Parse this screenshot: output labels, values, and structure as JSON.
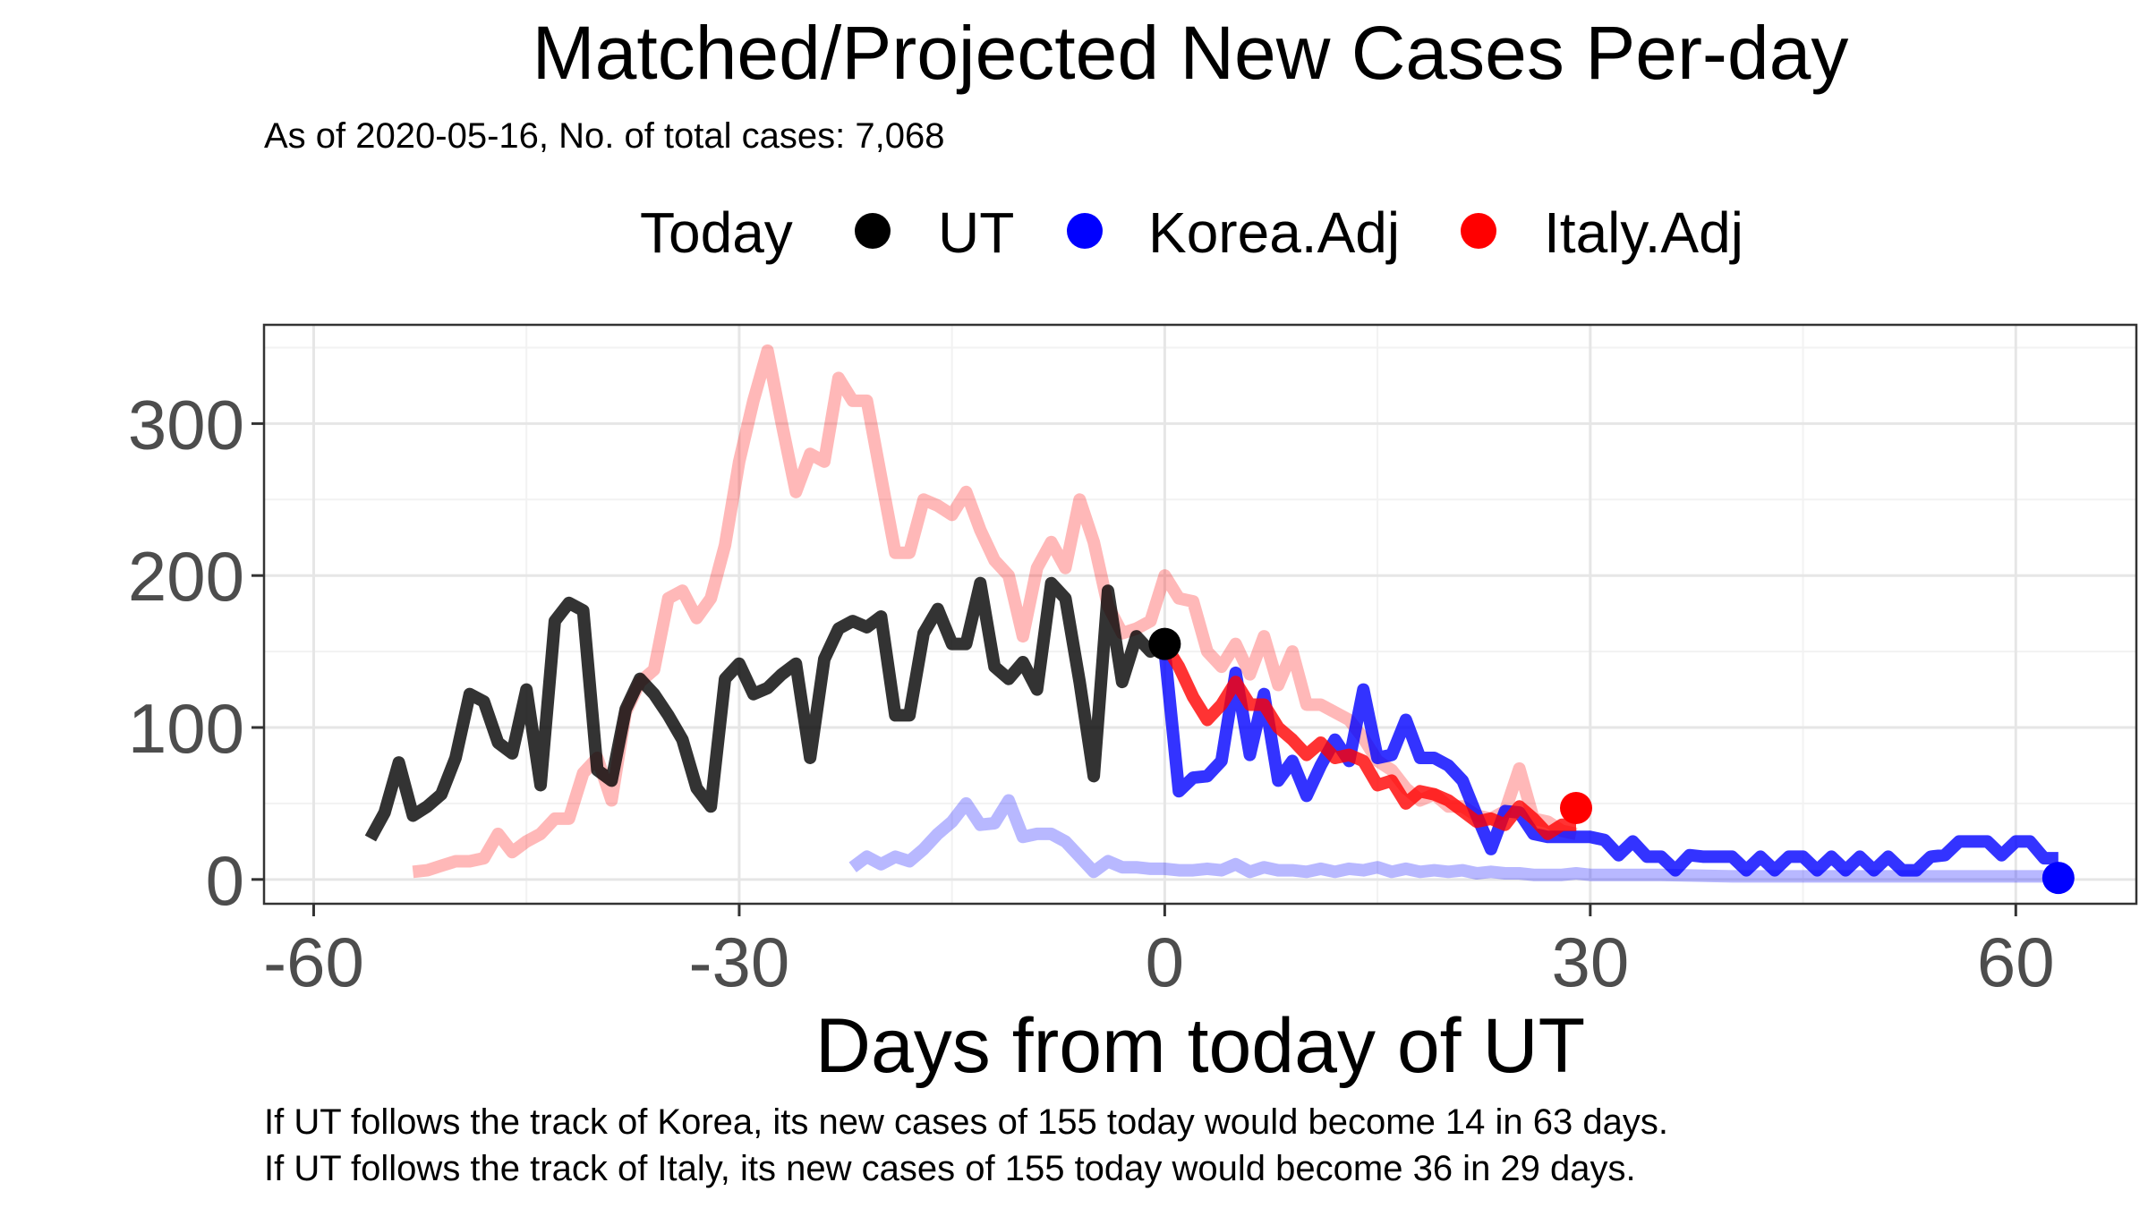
{
  "chart_data": {
    "type": "line",
    "title": "Matched/Projected New Cases Per-day",
    "subtitle": "As of 2020-05-16, No. of total cases: 7,068",
    "xlabel": "Days from today of UT",
    "ylabel": "",
    "xlim": [
      -63.5,
      68.5
    ],
    "ylim": [
      -16,
      365
    ],
    "x_ticks": [
      -60,
      -30,
      0,
      30,
      60
    ],
    "x_tick_labels": [
      "-60",
      "-30",
      "0",
      "30",
      "60"
    ],
    "y_ticks": [
      0,
      100,
      200,
      300
    ],
    "y_tick_labels": [
      "0",
      "100",
      "200",
      "300"
    ],
    "grid": true,
    "legend": {
      "position": "top",
      "title": "Today",
      "entries": [
        {
          "label": "UT",
          "color": "#000000"
        },
        {
          "label": "Korea.Adj",
          "color": "#0000ff"
        },
        {
          "label": "Italy.Adj",
          "color": "#ff0000"
        }
      ]
    },
    "series": [
      {
        "name": "Italy.Adj",
        "style": "history",
        "color": "#ff0000",
        "opacity": 0.28,
        "x": [
          -53,
          -52,
          -51,
          -50,
          -49,
          -48,
          -47,
          -46,
          -45,
          -44,
          -43,
          -42,
          -41,
          -40,
          -39,
          -38,
          -37,
          -36,
          -35,
          -34,
          -33,
          -32,
          -31,
          -30,
          -29,
          -28,
          -27,
          -26,
          -25,
          -24,
          -23,
          -22,
          -21,
          -20,
          -19,
          -18,
          -17,
          -16,
          -15,
          -14,
          -13,
          -12,
          -11,
          -10,
          -9,
          -8,
          -7,
          -6,
          -5,
          -4,
          -3,
          -2,
          -1,
          0,
          1,
          2,
          3,
          4,
          5,
          6,
          7,
          8,
          9,
          10,
          11,
          12,
          13,
          14,
          15,
          16,
          17,
          18,
          19,
          20,
          21,
          22,
          23,
          24,
          25,
          26,
          27,
          28,
          29
        ],
        "y": [
          5,
          6,
          9,
          12,
          12,
          14,
          30,
          18,
          25,
          30,
          40,
          40,
          70,
          80,
          52,
          110,
          130,
          138,
          185,
          190,
          172,
          185,
          220,
          275,
          315,
          348,
          300,
          255,
          280,
          275,
          330,
          315,
          315,
          265,
          215,
          215,
          250,
          246,
          240,
          255,
          230,
          210,
          200,
          160,
          205,
          222,
          205,
          250,
          222,
          180,
          162,
          165,
          170,
          200,
          185,
          183,
          150,
          140,
          155,
          135,
          160,
          128,
          150,
          115,
          115,
          110,
          105,
          93,
          78,
          72,
          60,
          52,
          56,
          48,
          48,
          42,
          40,
          45,
          73,
          40,
          38,
          32,
          30
        ]
      },
      {
        "name": "Korea.Adj",
        "style": "history",
        "color": "#0000ff",
        "opacity": 0.28,
        "x": [
          -22,
          -21,
          -20,
          -19,
          -18,
          -17,
          -16,
          -15,
          -14,
          -13,
          -12,
          -11,
          -10,
          -9,
          -8,
          -7,
          -6,
          -5,
          -4,
          -3,
          -2,
          -1,
          0,
          1,
          2,
          3,
          4,
          5,
          6,
          7,
          8,
          9,
          10,
          11,
          12,
          13,
          14,
          15,
          16,
          17,
          18,
          19,
          20,
          21,
          22,
          23,
          24,
          25,
          26,
          27,
          28,
          29,
          30,
          35,
          40,
          45,
          50,
          55,
          60,
          63
        ],
        "y": [
          8,
          15,
          10,
          15,
          12,
          20,
          30,
          38,
          50,
          36,
          37,
          52,
          28,
          30,
          30,
          25,
          15,
          5,
          12,
          8,
          8,
          7,
          7,
          6,
          6,
          7,
          6,
          10,
          5,
          8,
          6,
          6,
          5,
          7,
          5,
          7,
          6,
          8,
          5,
          7,
          5,
          6,
          5,
          6,
          4,
          5,
          4,
          4,
          3,
          3,
          3,
          4,
          3,
          3,
          2,
          2,
          2,
          2,
          2,
          2
        ]
      },
      {
        "name": "UT",
        "style": "observed",
        "color": "#000000",
        "opacity": 0.8,
        "x": [
          -56,
          -55,
          -54,
          -53,
          -52,
          -51,
          -50,
          -49,
          -48,
          -47,
          -46,
          -45,
          -44,
          -43,
          -42,
          -41,
          -40,
          -39,
          -38,
          -37,
          -36,
          -35,
          -34,
          -33,
          -32,
          -31,
          -30,
          -29,
          -28,
          -27,
          -26,
          -25,
          -24,
          -23,
          -22,
          -21,
          -20,
          -19,
          -18,
          -17,
          -16,
          -15,
          -14,
          -13,
          -12,
          -11,
          -10,
          -9,
          -8,
          -7,
          -6,
          -5,
          -4,
          -3,
          -2,
          -1,
          0
        ],
        "y": [
          27,
          44,
          77,
          42,
          48,
          56,
          80,
          122,
          117,
          90,
          83,
          125,
          62,
          170,
          182,
          177,
          72,
          65,
          112,
          132,
          122,
          108,
          92,
          60,
          48,
          132,
          142,
          122,
          126,
          135,
          142,
          80,
          145,
          165,
          170,
          166,
          173,
          108,
          108,
          162,
          178,
          155,
          155,
          195,
          140,
          132,
          143,
          125,
          195,
          185,
          130,
          68,
          190,
          130,
          160,
          150,
          155
        ]
      },
      {
        "name": "Korea.Adj",
        "style": "projected",
        "color": "#0000ff",
        "opacity": 0.8,
        "x": [
          0,
          1,
          2,
          3,
          4,
          5,
          6,
          7,
          8,
          9,
          10,
          11,
          12,
          13,
          14,
          15,
          16,
          17,
          18,
          19,
          20,
          21,
          22,
          23,
          24,
          25,
          26,
          27,
          28,
          29,
          30,
          31,
          32,
          33,
          34,
          35,
          36,
          37,
          38,
          39,
          40,
          41,
          42,
          43,
          44,
          45,
          46,
          47,
          48,
          49,
          50,
          51,
          52,
          53,
          54,
          55,
          56,
          57,
          58,
          59,
          60,
          61,
          62,
          63
        ],
        "y": [
          150,
          58,
          67,
          68,
          78,
          136,
          82,
          122,
          65,
          78,
          55,
          75,
          92,
          78,
          125,
          80,
          82,
          105,
          80,
          80,
          75,
          65,
          42,
          20,
          45,
          44,
          30,
          28,
          28,
          28,
          28,
          26,
          16,
          25,
          15,
          15,
          6,
          16,
          15,
          15,
          15,
          6,
          15,
          6,
          15,
          15,
          6,
          15,
          6,
          15,
          6,
          15,
          6,
          6,
          15,
          16,
          25,
          25,
          25,
          16,
          25,
          25,
          14,
          14
        ]
      },
      {
        "name": "Italy.Adj",
        "style": "projected",
        "color": "#ff0000",
        "opacity": 0.8,
        "x": [
          0,
          1,
          2,
          3,
          4,
          5,
          6,
          7,
          8,
          9,
          10,
          11,
          12,
          13,
          14,
          15,
          16,
          17,
          18,
          19,
          20,
          21,
          22,
          23,
          24,
          25,
          26,
          27,
          28,
          29
        ],
        "y": [
          155,
          140,
          120,
          105,
          115,
          130,
          115,
          115,
          100,
          92,
          82,
          90,
          80,
          82,
          78,
          62,
          65,
          50,
          58,
          56,
          52,
          45,
          38,
          40,
          36,
          48,
          40,
          30,
          36,
          36
        ]
      }
    ],
    "today_points": [
      {
        "series": "UT",
        "x": 0,
        "y": 155,
        "color": "#000000"
      },
      {
        "series": "Korea.Adj",
        "x": 63,
        "y": 1,
        "color": "#0000ff"
      },
      {
        "series": "Italy.Adj",
        "x": 29,
        "y": 47,
        "color": "#ff0000"
      }
    ]
  },
  "caption": {
    "korea": "If UT follows the track of Korea, its new cases of 155 today would become 14 in 63 days.",
    "italy": "If UT follows the track of Italy, its new cases of 155 today would become 36 in 29 days."
  }
}
